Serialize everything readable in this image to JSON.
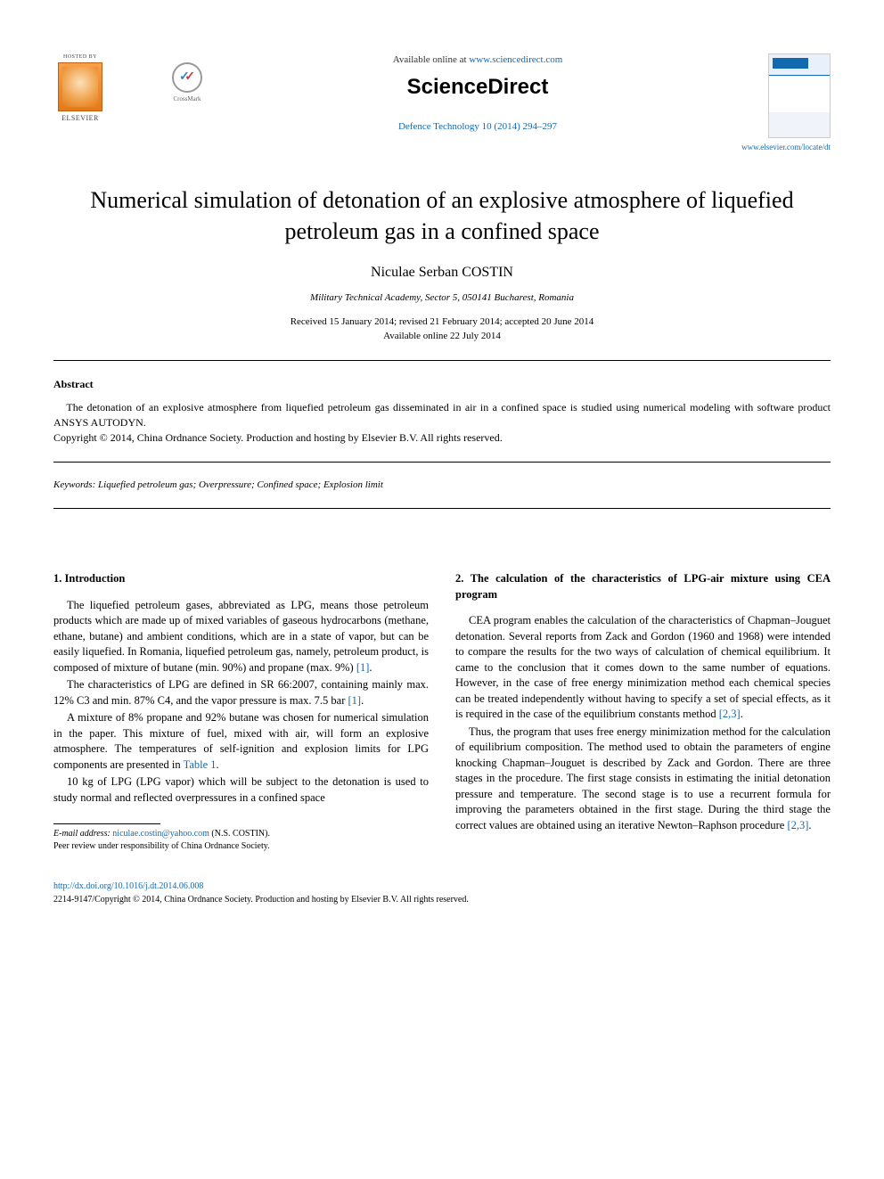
{
  "header": {
    "hosted_by": "HOSTED BY",
    "elsevier_text": "ELSEVIER",
    "crossmark_label": "CrossMark",
    "available_prefix": "Available online at ",
    "available_link": "www.sciencedirect.com",
    "sciencedirect": "ScienceDirect",
    "journal_ref": "Defence Technology 10 (2014) 294–297",
    "cover_title": "Defence Technology",
    "locate_link": "www.elsevier.com/locate/dt"
  },
  "article": {
    "title": "Numerical simulation of detonation of an explosive atmosphere of liquefied petroleum gas in a confined space",
    "author": "Niculae Serban COSTIN",
    "affiliation": "Military Technical Academy, Sector 5, 050141 Bucharest, Romania",
    "dates_line1": "Received 15 January 2014; revised 21 February 2014; accepted 20 June 2014",
    "dates_line2": "Available online 22 July 2014"
  },
  "abstract": {
    "heading": "Abstract",
    "text": "The detonation of an explosive atmosphere from liquefied petroleum gas disseminated in air in a confined space is studied using numerical modeling with software product ANSYS AUTODYN.",
    "copyright": "Copyright © 2014, China Ordnance Society. Production and hosting by Elsevier B.V. All rights reserved."
  },
  "keywords": {
    "label": "Keywords:",
    "text": " Liquefied petroleum gas; Overpressure; Confined space; Explosion limit"
  },
  "body": {
    "left": {
      "heading": "1. Introduction",
      "p1": "The liquefied petroleum gases, abbreviated as LPG, means those petroleum products which are made up of mixed variables of gaseous hydrocarbons (methane, ethane, butane) and ambient conditions, which are in a state of vapor, but can be easily liquefied. In Romania, liquefied petroleum gas, namely, petroleum product, is composed of mixture of butane (min. 90%) and propane (max. 9%) ",
      "p1_ref": "[1]",
      "p1_end": ".",
      "p2": "The characteristics of LPG are defined in SR 66:2007, containing mainly max. 12% C3 and min. 87% C4, and the vapor pressure is max. 7.5 bar ",
      "p2_ref": "[1]",
      "p2_end": ".",
      "p3": "A mixture of 8% propane and 92% butane was chosen for numerical simulation in the paper. This mixture of fuel, mixed with air, will form an explosive atmosphere. The temperatures of self-ignition and explosion limits for LPG components are presented in ",
      "p3_ref": "Table 1",
      "p3_end": ".",
      "p4": "10 kg of LPG (LPG vapor) which will be subject to the detonation is used to study normal and reflected overpressures in a confined space"
    },
    "right": {
      "heading": "2. The calculation of the characteristics of LPG-air mixture using CEA program",
      "p1": "CEA program enables the calculation of the characteristics of Chapman–Jouguet detonation. Several reports from Zack and Gordon (1960 and 1968) were intended to compare the results for the two ways of calculation of chemical equilibrium. It came to the conclusion that it comes down to the same number of equations. However, in the case of free energy minimization method each chemical species can be treated independently without having to specify a set of special effects, as it is required in the case of the equilibrium constants method ",
      "p1_ref": "[2,3]",
      "p1_end": ".",
      "p2": "Thus, the program that uses free energy minimization method for the calculation of equilibrium composition. The method used to obtain the parameters of engine knocking Chapman–Jouguet is described by Zack and Gordon. There are three stages in the procedure. The first stage consists in estimating the initial detonation pressure and temperature. The second stage is to use a recurrent formula for improving the parameters obtained in the first stage. During the third stage the correct values are obtained using an iterative Newton–Raphson procedure ",
      "p2_ref": "[2,3]",
      "p2_end": "."
    }
  },
  "footnote": {
    "email_label": "E-mail address: ",
    "email": "niculae.costin@yahoo.com",
    "email_suffix": " (N.S. COSTIN).",
    "peer": "Peer review under responsibility of China Ordnance Society."
  },
  "footer": {
    "doi": "http://dx.doi.org/10.1016/j.dt.2014.06.008",
    "issn_line": "2214-9147/Copyright © 2014, China Ordnance Society. Production and hosting by Elsevier B.V. All rights reserved."
  },
  "colors": {
    "link": "#1169b0",
    "text": "#000000",
    "background": "#ffffff",
    "elsevier_orange": "#e47a1a"
  }
}
